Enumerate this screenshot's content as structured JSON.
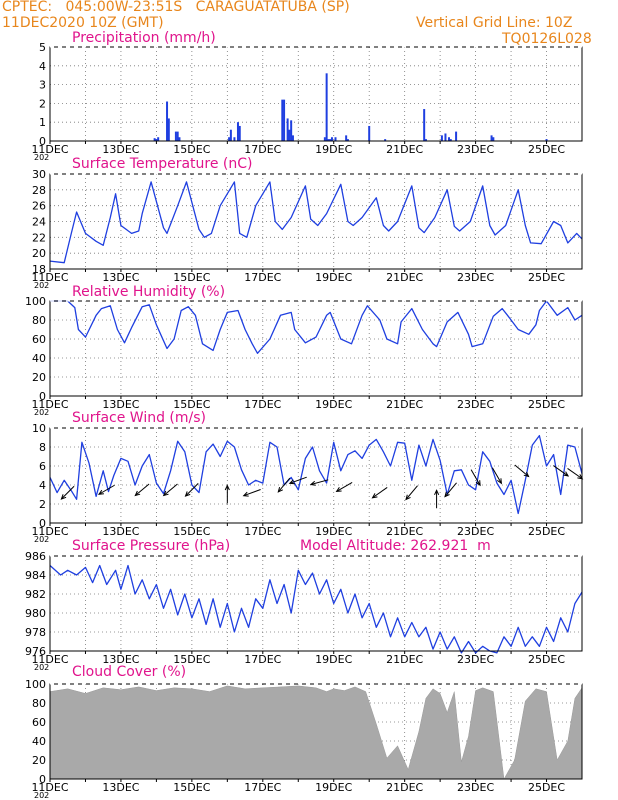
{
  "header": {
    "line1": "CPTEC:   045:00W-23:51S   CARAGUATATUBA (SP)",
    "line2": "11DEC2020 10Z (GMT)",
    "grid_note": "Vertical Grid Line: 10Z",
    "code": "TQ0126L028"
  },
  "x_labels": [
    "11DEC",
    "13DEC",
    "15DEC",
    "17DEC",
    "19DEC",
    "21DEC",
    "23DEC",
    "25DEC"
  ],
  "year_stub": "202",
  "colors": {
    "header": "#e8861c",
    "title": "#e0148c",
    "line": "#1f3fe0",
    "bars": "#1f3fe0",
    "cloud": "#a9a9a9",
    "arrows": "#000000"
  },
  "chart_data": [
    {
      "type": "bar",
      "title": "Precipitation (mm/h)",
      "ylim": [
        0,
        5
      ],
      "yticks": [
        0,
        1,
        2,
        3,
        4,
        5
      ],
      "x_range_days": [
        0,
        15
      ],
      "x": [
        2.95,
        3.0,
        3.05,
        3.3,
        3.35,
        3.55,
        3.6,
        3.65,
        5.05,
        5.1,
        5.2,
        5.3,
        5.35,
        6.55,
        6.6,
        6.7,
        6.75,
        6.8,
        6.85,
        7.75,
        7.8,
        7.85,
        7.9,
        7.95,
        8.05,
        8.35,
        8.4,
        9.0,
        9.45,
        10.55,
        10.6,
        11.05,
        11.15,
        11.25,
        11.3,
        11.45,
        12.45,
        12.5,
        14.0
      ],
      "values": [
        0.15,
        0.1,
        0.2,
        2.1,
        1.2,
        0.5,
        0.5,
        0.2,
        0.2,
        0.6,
        0.2,
        1.0,
        0.8,
        2.2,
        2.2,
        1.2,
        0.6,
        1.1,
        0.3,
        0.2,
        3.6,
        0.1,
        0.1,
        0.2,
        0.2,
        0.3,
        0.1,
        0.8,
        0.1,
        1.7,
        0.1,
        0.3,
        0.4,
        0.2,
        0.1,
        0.5,
        0.3,
        0.2,
        0.1
      ]
    },
    {
      "type": "line",
      "title": "Surface Temperature (nC)",
      "ylim": [
        18,
        30
      ],
      "yticks": [
        18,
        20,
        22,
        24,
        26,
        28,
        30
      ],
      "x": [
        0,
        0.4,
        0.6,
        0.75,
        1.0,
        1.3,
        1.5,
        1.7,
        1.85,
        2.0,
        2.3,
        2.5,
        2.6,
        2.85,
        3.2,
        3.3,
        3.6,
        3.85,
        4.2,
        4.35,
        4.55,
        4.8,
        5.2,
        5.35,
        5.55,
        5.8,
        6.2,
        6.35,
        6.55,
        6.8,
        7.2,
        7.35,
        7.55,
        7.8,
        8.2,
        8.4,
        8.55,
        8.8,
        9.2,
        9.4,
        9.55,
        9.8,
        10.2,
        10.4,
        10.55,
        10.85,
        11.2,
        11.4,
        11.55,
        11.85,
        12.2,
        12.4,
        12.55,
        12.85,
        13.2,
        13.4,
        13.55,
        13.85,
        14.2,
        14.4,
        14.6,
        14.85,
        15.0
      ],
      "y": [
        19,
        18.8,
        22.5,
        25.2,
        22.5,
        21.5,
        21.0,
        24.5,
        27.5,
        23.5,
        22.5,
        22.8,
        25,
        29,
        23.2,
        22.5,
        26,
        29,
        23,
        22,
        22.5,
        26,
        29,
        22.5,
        22.0,
        26,
        29,
        24,
        23.0,
        24.5,
        28.5,
        24.3,
        23.5,
        25,
        28.7,
        24,
        23.5,
        24.5,
        27.0,
        23.5,
        22.8,
        24,
        28.5,
        23.2,
        22.6,
        24.5,
        28.0,
        23.4,
        22.8,
        24.0,
        28.5,
        23.5,
        22.3,
        23.5,
        28.0,
        23.5,
        21.3,
        21.2,
        24.0,
        23.5,
        21.3,
        22.5,
        21.8
      ]
    },
    {
      "type": "line",
      "title": "Relative Humidity (%)",
      "ylim": [
        0,
        100
      ],
      "yticks": [
        0,
        20,
        40,
        60,
        80,
        100
      ],
      "x": [
        0,
        0.3,
        0.5,
        0.7,
        0.8,
        1.0,
        1.3,
        1.45,
        1.7,
        1.9,
        2.1,
        2.3,
        2.6,
        2.8,
        3.0,
        3.3,
        3.5,
        3.7,
        3.9,
        4.1,
        4.3,
        4.6,
        4.8,
        5.0,
        5.3,
        5.5,
        5.7,
        5.85,
        6.2,
        6.5,
        6.8,
        6.9,
        7.2,
        7.5,
        7.8,
        7.9,
        8.2,
        8.5,
        8.8,
        8.95,
        9.3,
        9.5,
        9.8,
        9.9,
        10.2,
        10.5,
        10.8,
        10.9,
        11.2,
        11.5,
        11.8,
        11.9,
        12.2,
        12.5,
        12.75,
        12.9,
        13.2,
        13.5,
        13.7,
        13.8,
        14.0,
        14.3,
        14.6,
        14.8,
        15.0
      ],
      "y": [
        100,
        100,
        100,
        93,
        70,
        62,
        85,
        92,
        95,
        70,
        56,
        72,
        94,
        96,
        75,
        50,
        60,
        90,
        94,
        85,
        55,
        48,
        70,
        88,
        90,
        70,
        55,
        45,
        60,
        85,
        88,
        70,
        56,
        62,
        85,
        88,
        60,
        55,
        85,
        95,
        80,
        60,
        55,
        78,
        92,
        70,
        55,
        52,
        78,
        88,
        65,
        52,
        55,
        84,
        92,
        85,
        70,
        65,
        75,
        90,
        100,
        85,
        93,
        80,
        85
      ]
    },
    {
      "type": "line",
      "title": "Surface Wind (m/s)",
      "ylim": [
        0,
        10
      ],
      "yticks": [
        0,
        2,
        4,
        6,
        8,
        10
      ],
      "x": [
        0,
        0.2,
        0.4,
        0.6,
        0.75,
        0.9,
        1.1,
        1.3,
        1.5,
        1.65,
        1.8,
        2.0,
        2.2,
        2.4,
        2.6,
        2.8,
        3.0,
        3.2,
        3.4,
        3.6,
        3.8,
        4.0,
        4.2,
        4.4,
        4.6,
        4.8,
        5.0,
        5.2,
        5.4,
        5.6,
        5.8,
        6.0,
        6.2,
        6.4,
        6.6,
        6.8,
        7.0,
        7.2,
        7.4,
        7.6,
        7.8,
        8.0,
        8.2,
        8.4,
        8.6,
        8.8,
        9.0,
        9.2,
        9.4,
        9.6,
        9.8,
        10.0,
        10.2,
        10.4,
        10.6,
        10.8,
        11.0,
        11.2,
        11.4,
        11.6,
        11.8,
        12.0,
        12.2,
        12.4,
        12.6,
        12.8,
        13.0,
        13.2,
        13.4,
        13.6,
        13.8,
        14.0,
        14.2,
        14.4,
        14.6,
        14.8,
        15.0
      ],
      "y": [
        4.8,
        3.2,
        4.5,
        3.4,
        2.5,
        8.5,
        6.3,
        2.8,
        5.5,
        3.3,
        5.0,
        6.8,
        6.5,
        4.0,
        6.0,
        7.2,
        4.2,
        3.1,
        5.5,
        8.6,
        7.5,
        4.0,
        3.2,
        7.5,
        8.3,
        7.0,
        8.6,
        8.0,
        5.6,
        4.0,
        4.5,
        4.2,
        8.5,
        8.0,
        4.0,
        4.8,
        3.5,
        6.8,
        8.0,
        5.5,
        4.2,
        8.5,
        5.5,
        7.2,
        7.6,
        6.8,
        8.2,
        8.8,
        7.5,
        6.0,
        8.5,
        8.4,
        4.5,
        8.2,
        6.0,
        8.8,
        6.6,
        3.0,
        5.5,
        5.6,
        4.0,
        3.5,
        7.5,
        6.5,
        4.2,
        3.0,
        4.5,
        1.0,
        4.5,
        8.2,
        9.2,
        6.0,
        7.2,
        3.0,
        8.2,
        8.0,
        5.2
      ]
    },
    {
      "type": "line",
      "title": "Surface Pressure (hPa)",
      "annotation": "Model Altitude: 262.921  m",
      "ylim": [
        976,
        986
      ],
      "yticks": [
        976,
        978,
        980,
        982,
        984,
        986
      ],
      "x": [
        0,
        0.3,
        0.5,
        0.75,
        1.0,
        1.2,
        1.4,
        1.6,
        1.85,
        2.0,
        2.2,
        2.4,
        2.6,
        2.8,
        3.0,
        3.2,
        3.4,
        3.6,
        3.8,
        4.0,
        4.2,
        4.4,
        4.6,
        4.8,
        5.0,
        5.2,
        5.4,
        5.6,
        5.8,
        6.0,
        6.2,
        6.4,
        6.6,
        6.8,
        7.0,
        7.2,
        7.4,
        7.6,
        7.8,
        8.0,
        8.2,
        8.4,
        8.6,
        8.8,
        9.0,
        9.2,
        9.4,
        9.6,
        9.8,
        10.0,
        10.2,
        10.4,
        10.6,
        10.8,
        11.0,
        11.2,
        11.4,
        11.6,
        11.8,
        12.0,
        12.2,
        12.4,
        12.6,
        12.8,
        13.0,
        13.2,
        13.4,
        13.6,
        13.8,
        14.0,
        14.2,
        14.4,
        14.6,
        14.8,
        15.0
      ],
      "y": [
        985,
        984,
        984.5,
        984,
        984.8,
        983.2,
        985,
        983,
        984.5,
        982.5,
        985,
        982,
        983.5,
        981.5,
        983,
        980.5,
        982.5,
        979.8,
        982,
        979.5,
        981.5,
        978.8,
        981.5,
        978.5,
        981,
        978,
        980.5,
        978.5,
        981.5,
        980.5,
        983.5,
        981,
        983,
        980,
        984.5,
        983,
        984.2,
        982,
        983.5,
        981,
        982.5,
        980,
        982,
        979.5,
        981,
        978.5,
        980,
        977.5,
        979.5,
        977.5,
        979,
        977.5,
        978.5,
        976.2,
        978,
        976.2,
        977.5,
        975.8,
        977,
        975.8,
        976.5,
        976,
        975.8,
        977.5,
        976.5,
        978.5,
        976.5,
        977.5,
        976.5,
        978.5,
        977,
        979.5,
        978,
        981,
        982.2
      ]
    },
    {
      "type": "area",
      "title": "Cloud Cover (%)",
      "ylim": [
        0,
        100
      ],
      "yticks": [
        0,
        20,
        40,
        60,
        80,
        100
      ],
      "x": [
        0,
        0.5,
        1.0,
        1.5,
        2.0,
        2.5,
        3.0,
        3.5,
        4.0,
        4.5,
        5.0,
        5.5,
        6.0,
        6.5,
        7.0,
        7.5,
        7.8,
        8.0,
        8.3,
        8.6,
        8.9,
        9.2,
        9.5,
        9.8,
        10.1,
        10.4,
        10.6,
        10.8,
        11.0,
        11.2,
        11.4,
        11.6,
        11.8,
        12.0,
        12.2,
        12.5,
        12.8,
        13.1,
        13.4,
        13.7,
        14.0,
        14.3,
        14.6,
        14.8,
        15.0
      ],
      "y": [
        92,
        95,
        90,
        96,
        94,
        97,
        93,
        96,
        95,
        92,
        98,
        95,
        96,
        97,
        98,
        96,
        92,
        95,
        93,
        97,
        92,
        58,
        22,
        35,
        10,
        50,
        85,
        95,
        90,
        70,
        92,
        18,
        45,
        93,
        96,
        92,
        0,
        20,
        82,
        95,
        92,
        20,
        40,
        85,
        96
      ]
    }
  ]
}
